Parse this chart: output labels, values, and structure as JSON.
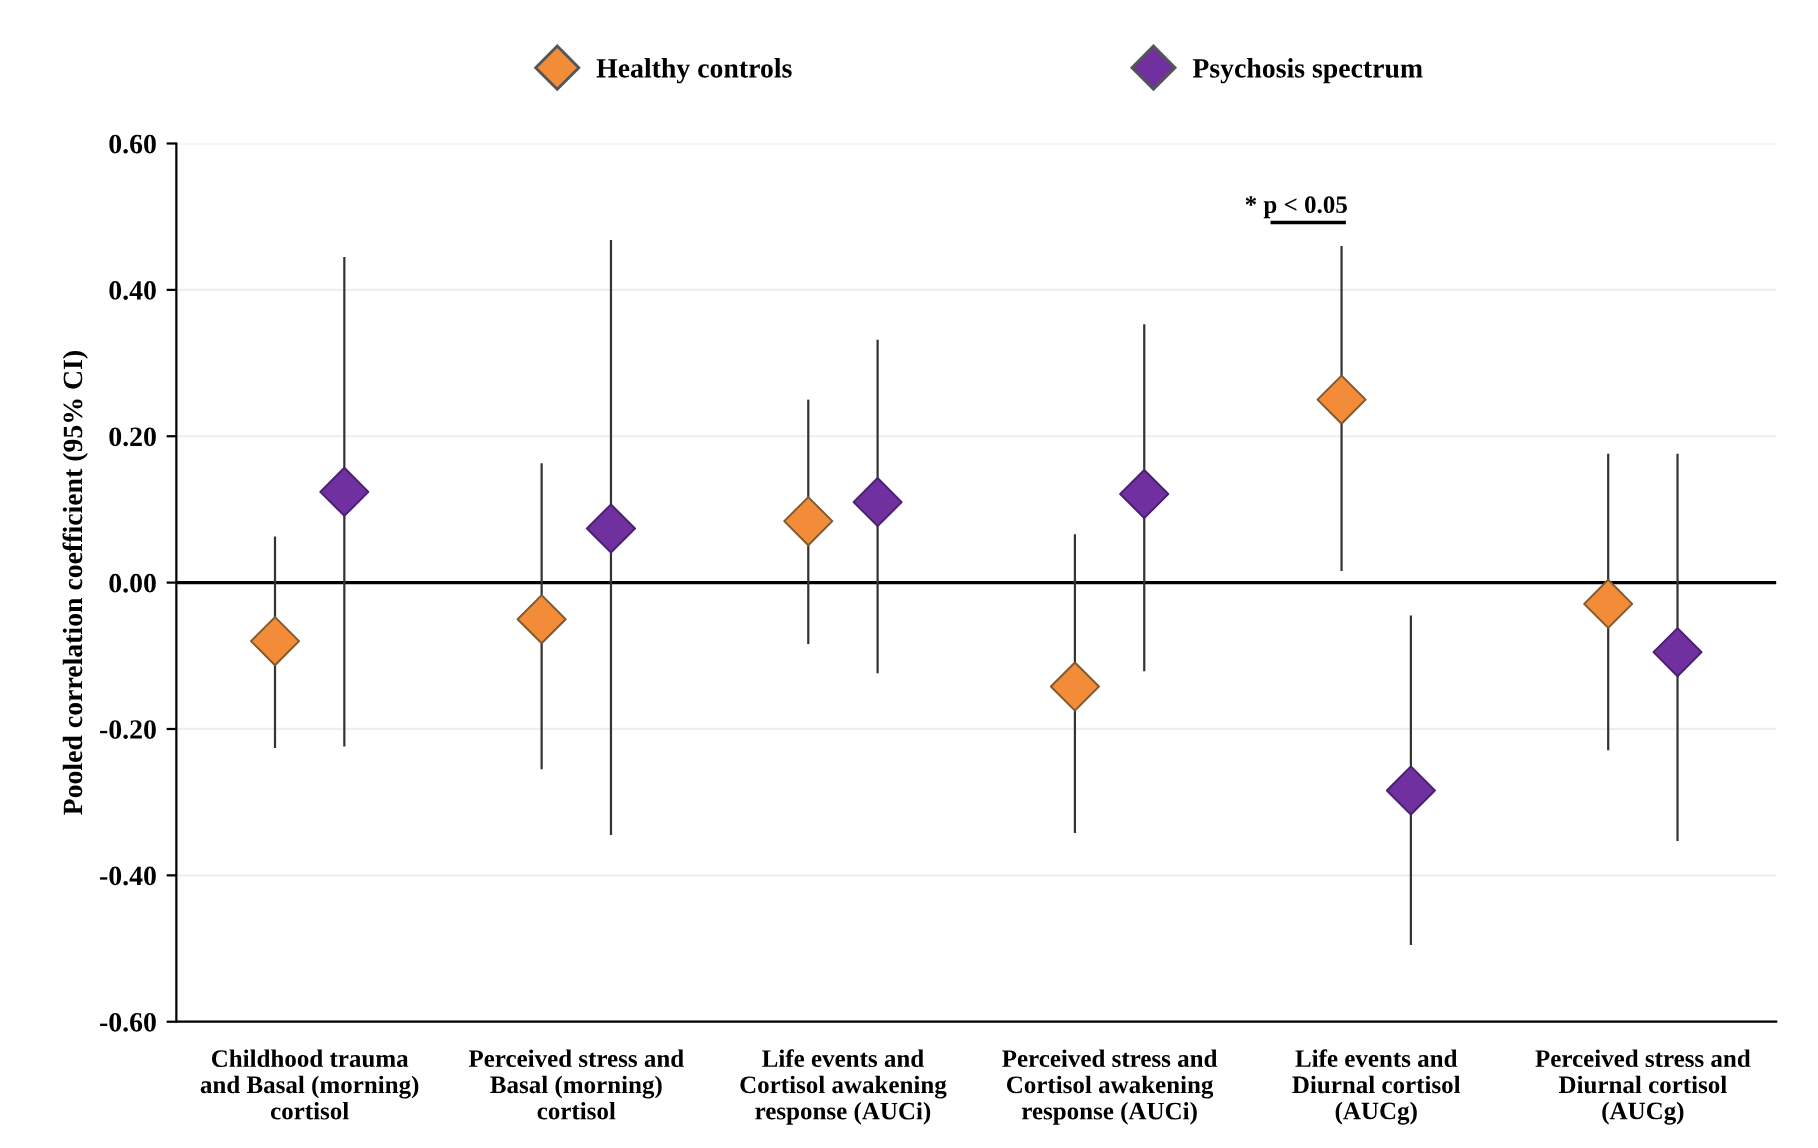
{
  "chart_data": {
    "type": "scatter",
    "categories": [
      "Childhood trauma\nand Basal (morning)\ncortisol",
      "Perceived stress and\nBasal (morning)\ncortisol",
      "Life events and\nCortisol awakening\nresponse (AUCi)",
      "Perceived stress and\nCortisol awakening\nresponse (AUCi)",
      "Life events and\nDiurnal cortisol\n(AUCg)",
      "Perceived stress and\nDiurnal cortisol\n(AUCg)"
    ],
    "ylabel": "Pooled correlation coefficient (95% CI)",
    "series": [
      {
        "name": "Healthy controls",
        "color": "#f28c38",
        "values": [
          -0.08,
          -0.05,
          0.084,
          -0.142,
          0.25,
          -0.029
        ],
        "errors": [
          [
            -0.226,
            0.063
          ],
          [
            -0.255,
            0.163
          ],
          [
            -0.084,
            0.25
          ],
          [
            -0.342,
            0.066
          ],
          [
            0.016,
            0.46
          ],
          [
            -0.229,
            0.176
          ]
        ]
      },
      {
        "name": "Psychosis spectrum",
        "color": "#7030a0",
        "values": [
          0.124,
          0.074,
          0.11,
          0.121,
          -0.284,
          -0.095
        ],
        "errors": [
          [
            -0.224,
            0.445
          ],
          [
            -0.345,
            0.468
          ],
          [
            -0.124,
            0.332
          ],
          [
            -0.121,
            0.353
          ],
          [
            -0.495,
            -0.045
          ],
          [
            -0.353,
            0.176
          ]
        ]
      }
    ],
    "ylim": [
      -0.6,
      0.6
    ],
    "yticks": [
      {
        "value": -0.6,
        "label": "-0.60"
      },
      {
        "value": -0.4,
        "label": "-0.40"
      },
      {
        "value": -0.2,
        "label": "-0.20"
      },
      {
        "value": 0.0,
        "label": "0.00"
      },
      {
        "value": 0.2,
        "label": "0.20"
      },
      {
        "value": 0.4,
        "label": "0.40"
      },
      {
        "value": 0.6,
        "label": "0.60"
      }
    ],
    "ref_lines": [
      {
        "axis": "y",
        "value": 0.0,
        "color": "#000000"
      }
    ],
    "annotations": [
      "* p < 0.05"
    ],
    "grid": "y",
    "legend": "top",
    "marker": "diamond"
  }
}
